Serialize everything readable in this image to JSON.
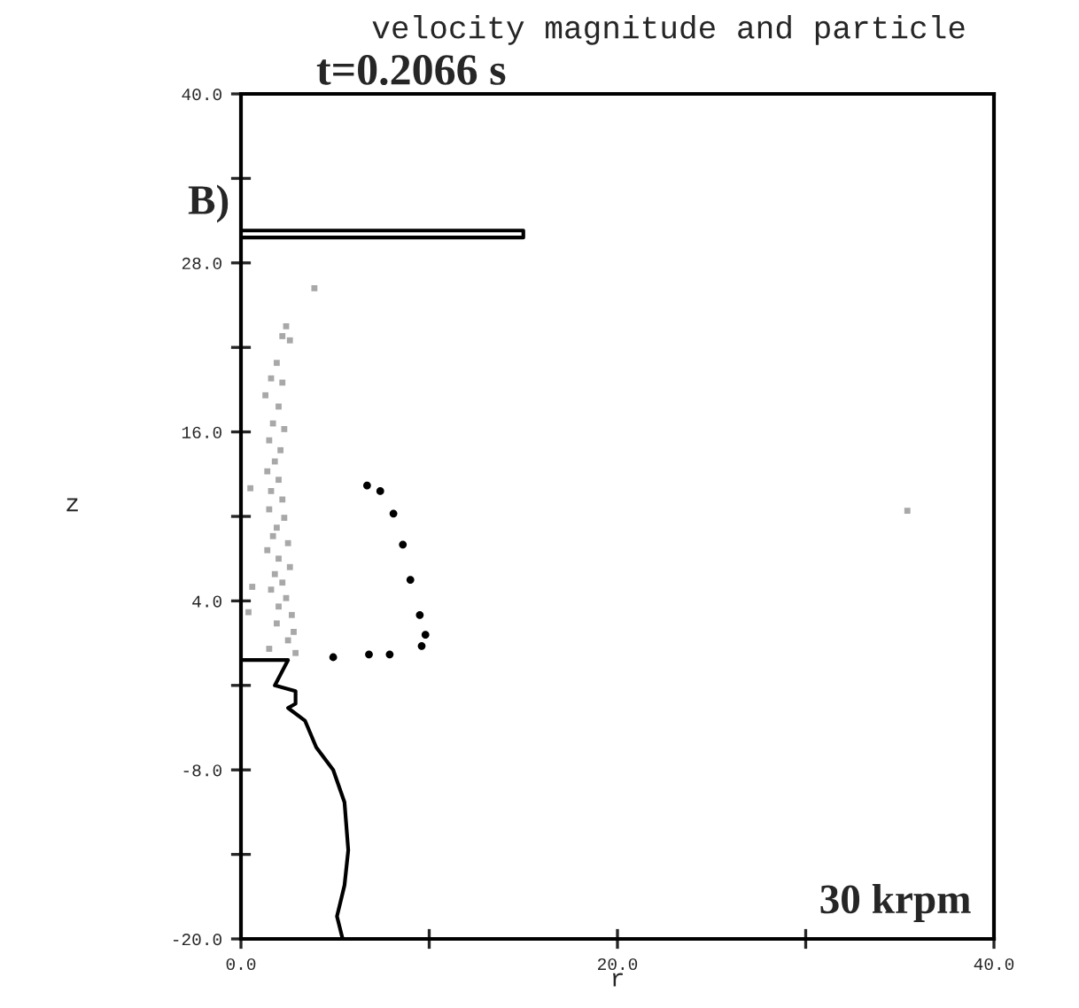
{
  "chart_data": {
    "type": "scatter",
    "title": "velocity magnitude and particle",
    "xlabel": "r",
    "ylabel": "z",
    "annotations": [
      "t=0.2066 s",
      "B)",
      "30 krpm"
    ],
    "xlim": [
      0,
      40
    ],
    "ylim": [
      -20,
      40
    ],
    "xticks": [
      {
        "value": 0,
        "label": "0.0"
      },
      {
        "value": 10,
        "label": null
      },
      {
        "value": 20,
        "label": "20.0"
      },
      {
        "value": 30,
        "label": null
      },
      {
        "value": 40,
        "label": "40.0"
      }
    ],
    "yticks": [
      {
        "value": -20,
        "label": "-20.0"
      },
      {
        "value": -14,
        "label": null
      },
      {
        "value": -8,
        "label": "-8.0"
      },
      {
        "value": -2,
        "label": null
      },
      {
        "value": 4,
        "label": "4.0"
      },
      {
        "value": 10,
        "label": null
      },
      {
        "value": 16,
        "label": "16.0"
      },
      {
        "value": 22,
        "label": null
      },
      {
        "value": 28,
        "label": "28.0"
      },
      {
        "value": 34,
        "label": null
      },
      {
        "value": 40,
        "label": "40.0"
      }
    ],
    "grid": false,
    "legend": false,
    "series": [
      {
        "type": "line",
        "color": "#000000",
        "x": [
          0,
          15,
          15,
          0
        ],
        "values": [
          30.3,
          30.3,
          29.8,
          29.8
        ]
      },
      {
        "type": "line",
        "color": "#000000",
        "x": [
          0,
          2.5,
          1.8,
          2.9,
          2.9,
          2.5,
          3.4,
          4.0,
          4.9,
          5.5,
          5.7,
          5.5,
          5.1,
          5.4
        ],
        "values": [
          -0.2,
          -0.2,
          -2.0,
          -2.4,
          -3.3,
          -3.6,
          -4.5,
          -6.4,
          -8.0,
          -10.3,
          -13.7,
          -16.2,
          -18.4,
          -20.0
        ]
      },
      {
        "color": "#a8a8a8",
        "marker": "square",
        "x": [
          3.9,
          2.4,
          2.2,
          2.6,
          1.9,
          1.6,
          2.2,
          1.3,
          2.0,
          1.7,
          2.3,
          1.5,
          2.1,
          1.8,
          1.4,
          2.0,
          1.6,
          2.2,
          1.5,
          2.3,
          1.9,
          1.7,
          2.5,
          1.4,
          2.0,
          2.6,
          1.8,
          2.2,
          1.6,
          2.4,
          0.6,
          0.4,
          2.0,
          2.7,
          1.9,
          2.8,
          2.5,
          0.5,
          1.5,
          2.9,
          35.4
        ],
        "values": [
          26.2,
          23.5,
          22.8,
          22.5,
          20.9,
          19.8,
          19.5,
          18.6,
          17.8,
          16.6,
          16.2,
          15.4,
          14.7,
          13.9,
          13.2,
          12.6,
          11.8,
          11.2,
          10.5,
          9.9,
          9.2,
          8.6,
          8.1,
          7.6,
          7.0,
          6.4,
          5.9,
          5.3,
          4.8,
          4.2,
          5.0,
          3.2,
          3.6,
          3.0,
          2.4,
          1.8,
          1.2,
          12.0,
          0.6,
          0.3,
          10.4
        ]
      },
      {
        "color": "#000000",
        "marker": "circle",
        "x": [
          6.7,
          7.4,
          8.1,
          8.6,
          9.0,
          9.5,
          9.8,
          9.6,
          4.9,
          6.8,
          7.9
        ],
        "values": [
          12.2,
          11.8,
          10.2,
          8.0,
          5.5,
          3.0,
          1.6,
          0.8,
          0.0,
          0.2,
          0.2
        ]
      }
    ]
  }
}
